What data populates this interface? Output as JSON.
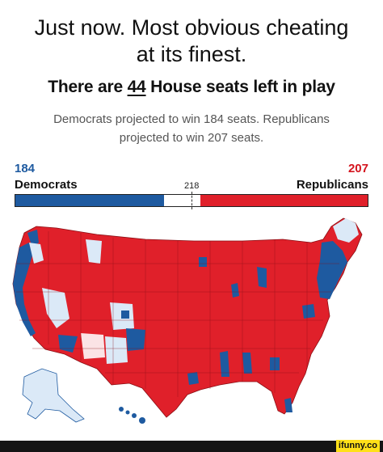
{
  "caption": {
    "line1": "Just now. Most obvious cheating",
    "line2": "at its finest."
  },
  "headline": {
    "prefix": "There are ",
    "seats_left": "44",
    "suffix": " House seats left in play"
  },
  "subhead": {
    "line1": "Democrats projected to win 184 seats. Republicans",
    "line2": "projected to win 207 seats."
  },
  "tally": {
    "democrats": {
      "count": "184",
      "label": "Democrats",
      "color": "#1e5aa0",
      "seats": 184
    },
    "republicans": {
      "count": "207",
      "label": "Republicans",
      "color": "#e0202a",
      "seats": 207
    },
    "majority_label": "218",
    "total_seats": 435
  },
  "map": {
    "primary_color": "#e0202a",
    "secondary_color": "#1e5aa0",
    "light_blue": "#dbe9f7",
    "light_red": "#fbe3e5"
  },
  "watermark": {
    "label": "ifunny.co"
  }
}
